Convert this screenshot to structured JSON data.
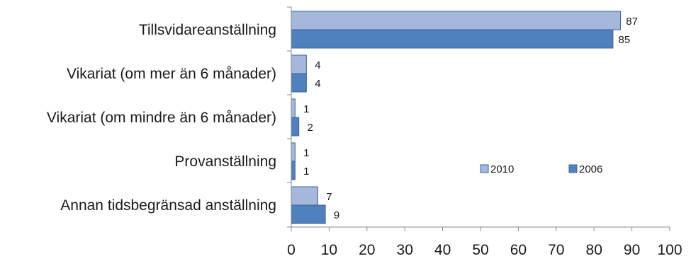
{
  "chart_data": {
    "type": "bar",
    "orientation": "horizontal",
    "categories": [
      "Tillsvidareanställning",
      "Vikariat (om mer än 6 månader)",
      "Vikariat (om mindre än 6 månader)",
      "Provanställning",
      "Annan tidsbegränsad anställning"
    ],
    "series": [
      {
        "name": "2010",
        "values": [
          87,
          4,
          1,
          1,
          7
        ],
        "color": "#a4b8dc"
      },
      {
        "name": "2006",
        "values": [
          85,
          4,
          2,
          1,
          9
        ],
        "color": "#4f81bd"
      }
    ],
    "title": "",
    "xlabel": "",
    "ylabel": "",
    "xlim": [
      0,
      100
    ],
    "x_ticks": [
      0,
      10,
      20,
      30,
      40,
      50,
      60,
      70,
      80,
      90,
      100
    ],
    "tick_labels": [
      "0",
      "10",
      "20",
      "30",
      "40",
      "50",
      "60",
      "70",
      "80",
      "90",
      "100"
    ],
    "grid": false,
    "legend_position": "inside-right",
    "bar_edge_color": "#3b639a",
    "axis_color": "#888888"
  }
}
